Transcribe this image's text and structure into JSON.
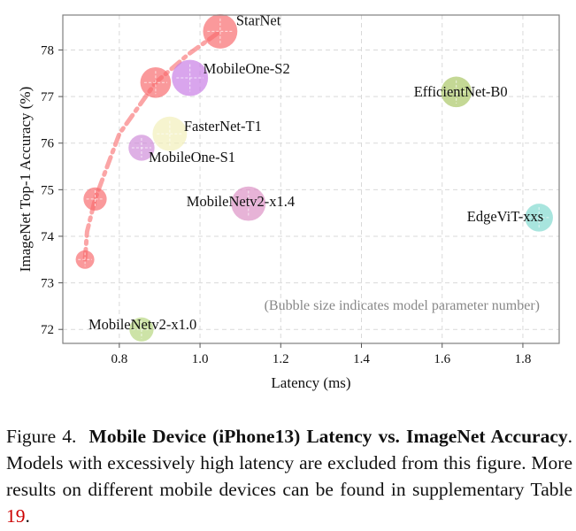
{
  "chart_data": {
    "type": "scatter",
    "xlabel": "Latency (ms)",
    "ylabel": "ImageNet Top-1 Accuracy (%)",
    "xlim": [
      0.66,
      1.89
    ],
    "ylim": [
      71.7,
      78.75
    ],
    "xticks": [
      0.8,
      1.0,
      1.2,
      1.4,
      1.6,
      1.8
    ],
    "xtick_labels": [
      "0.8",
      "1.0",
      "1.2",
      "1.4",
      "1.6",
      "1.8"
    ],
    "yticks": [
      72,
      73,
      74,
      75,
      76,
      77,
      78
    ],
    "ytick_labels": [
      "72",
      "73",
      "74",
      "75",
      "76",
      "77",
      "78"
    ],
    "grid": true,
    "annotation": "(Bubble size indicates model parameter number)",
    "points": [
      {
        "label": "StarNet",
        "show_label": false,
        "x": 0.715,
        "y": 73.5,
        "size": 1.0,
        "color": "#f8696b"
      },
      {
        "label": "StarNet",
        "show_label": false,
        "x": 0.74,
        "y": 74.8,
        "size": 1.25,
        "color": "#f8696b"
      },
      {
        "label": "StarNet",
        "show_label": false,
        "x": 0.89,
        "y": 77.3,
        "size": 1.65,
        "color": "#f8696b"
      },
      {
        "label": "StarNet",
        "show_label": true,
        "x": 1.05,
        "y": 78.4,
        "size": 1.85,
        "color": "#f8696b"
      },
      {
        "label": "MobileOne-S2",
        "show_label": true,
        "x": 0.975,
        "y": 77.4,
        "size": 1.95,
        "color": "#c77ae5"
      },
      {
        "label": "EfficientNet-B0",
        "show_label": true,
        "x": 1.635,
        "y": 77.1,
        "size": 1.65,
        "color": "#a8c563"
      },
      {
        "label": "FasterNet-T1",
        "show_label": true,
        "x": 0.925,
        "y": 76.2,
        "size": 1.85,
        "color": "#f2efb8"
      },
      {
        "label": "MobileOne-S1",
        "show_label": true,
        "x": 0.855,
        "y": 75.9,
        "size": 1.4,
        "color": "#cf8ad8"
      },
      {
        "label": "MobileNetv2-x1.4",
        "show_label": true,
        "x": 1.12,
        "y": 74.7,
        "size": 1.85,
        "color": "#dc8fc4"
      },
      {
        "label": "EdgeViT-xxs",
        "show_label": true,
        "x": 1.84,
        "y": 74.4,
        "size": 1.5,
        "color": "#7fd8cf"
      },
      {
        "label": "MobileNetv2-x1.0",
        "show_label": true,
        "x": 0.855,
        "y": 72.0,
        "size": 1.3,
        "color": "#b6d67d"
      }
    ],
    "trend_line": {
      "label": "StarNet",
      "color": "#f8696b",
      "x": [
        0.715,
        0.72,
        0.74,
        0.8,
        0.89,
        0.97,
        1.05
      ],
      "y": [
        73.5,
        74.1,
        74.8,
        76.2,
        77.3,
        77.9,
        78.4
      ]
    }
  },
  "caption": {
    "prefix": "Figure 4.",
    "title": "Mobile Device (iPhone13) Latency vs. ImageNet Accuracy",
    "body": ". Models with excessively high latency are excluded from this figure. More results on different mobile devices can be found in supplementary Table",
    "table_ref": "19",
    "end": "."
  }
}
